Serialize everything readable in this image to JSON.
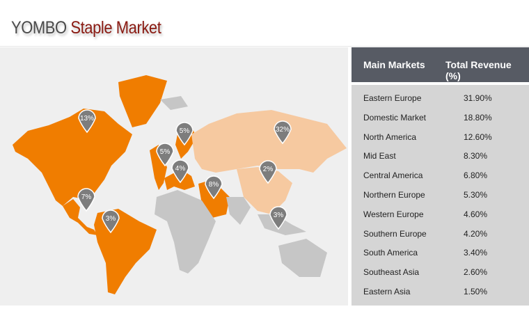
{
  "title": {
    "brand": "YOMBO",
    "subtitle": "Staple Market"
  },
  "colors": {
    "primary_market": "#f07d00",
    "secondary_market": "#f6c9a0",
    "other": "#c6c6c6",
    "marker": "#7d7d7d",
    "header_bg": "#575b64"
  },
  "table": {
    "headers": [
      "Main Markets",
      "Total Revenue (%)"
    ],
    "rows": [
      [
        "Eastern Europe",
        "31.90%"
      ],
      [
        "Domestic Market",
        "18.80%"
      ],
      [
        "North America",
        "12.60%"
      ],
      [
        "Mid East",
        "8.30%"
      ],
      [
        "Central America",
        "6.80%"
      ],
      [
        "Northern Europe",
        "5.30%"
      ],
      [
        "Western Europe",
        "4.60%"
      ],
      [
        "Southern Europe",
        "4.20%"
      ],
      [
        "South America",
        "3.40%"
      ],
      [
        "Southeast Asia",
        "2.60%"
      ],
      [
        "Eastern Asia",
        "1.50%"
      ]
    ]
  },
  "markers": [
    "13%",
    "5%",
    "5%",
    "4%",
    "32%",
    "2%",
    "8%",
    "7%",
    "3%",
    "3%"
  ]
}
